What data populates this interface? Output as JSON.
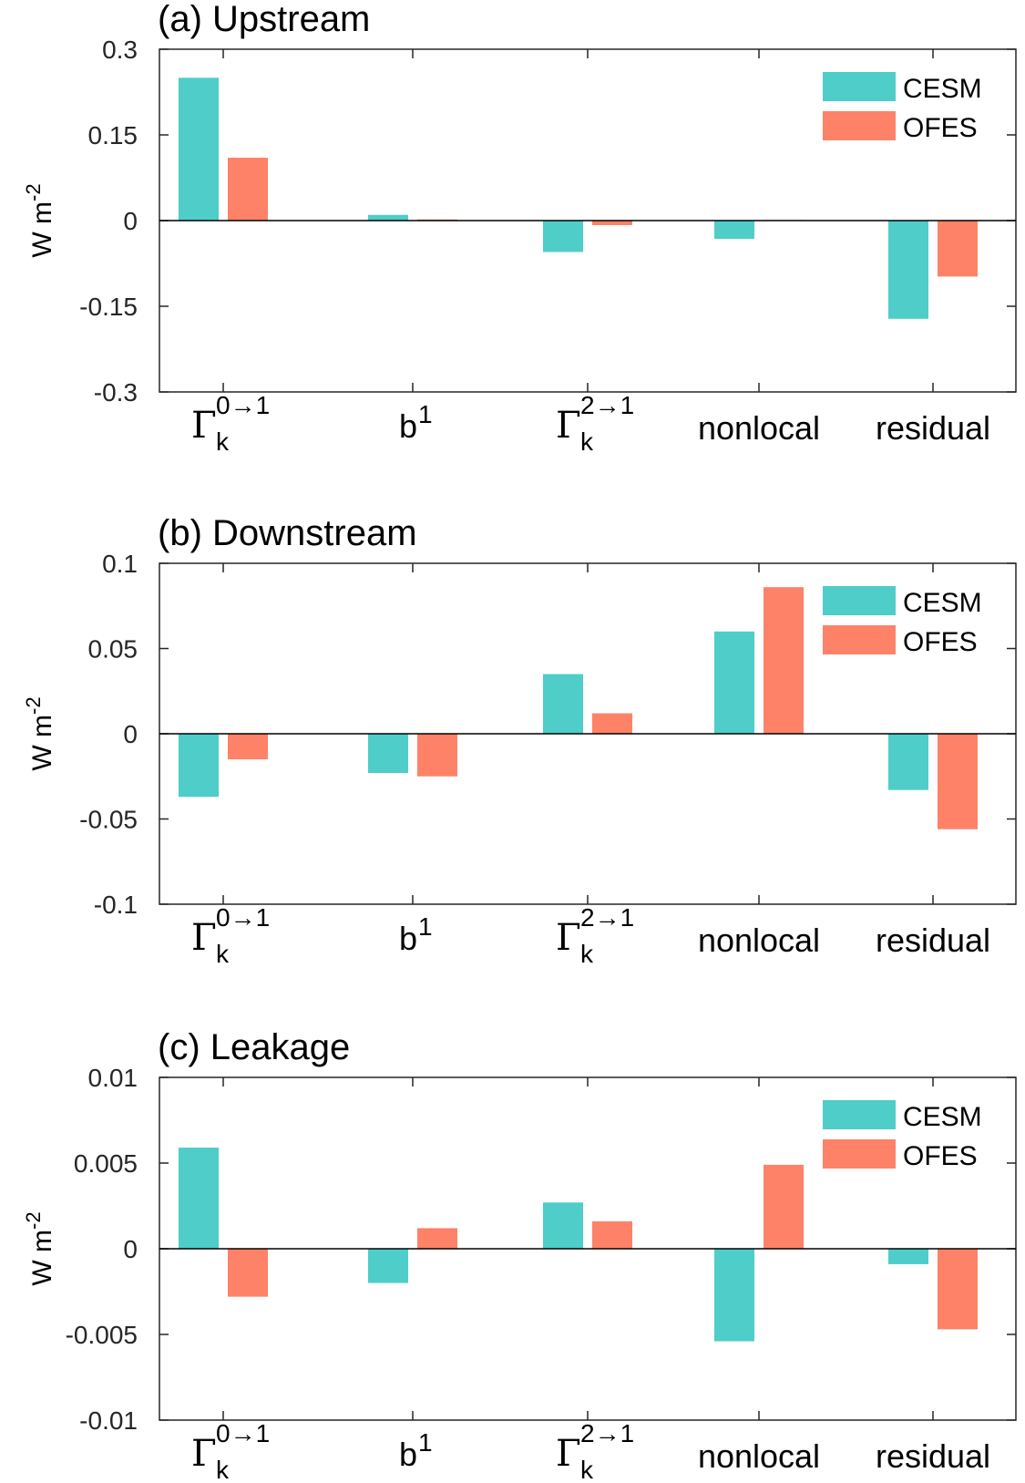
{
  "colors": {
    "CESM": "#4ecdc9",
    "OFES": "#fe8268",
    "axis": "#262626"
  },
  "categories": [
    "Γk0→1",
    "b1",
    "Γk2→1",
    "nonlocal",
    "residual"
  ],
  "chart_data": [
    {
      "type": "bar",
      "title": "(a) Upstream",
      "ylabel": "W m-2",
      "ylim": [
        -0.3,
        0.3
      ],
      "yticks": [
        "-0.3",
        "-0.15",
        "0",
        "0.15",
        "0.3"
      ],
      "ytick_values": [
        -0.3,
        -0.15,
        0,
        0.15,
        0.3
      ],
      "categories": [
        "Γk0→1",
        "b1",
        "Γk2→1",
        "nonlocal",
        "residual"
      ],
      "legend": "top-right",
      "series": [
        {
          "name": "CESM",
          "values": [
            0.25,
            0.01,
            -0.055,
            -0.032,
            -0.172
          ]
        },
        {
          "name": "OFES",
          "values": [
            0.11,
            0.002,
            -0.008,
            0.001,
            -0.098
          ]
        }
      ]
    },
    {
      "type": "bar",
      "title": "(b) Downstream",
      "ylabel": "W m-2",
      "ylim": [
        -0.1,
        0.1
      ],
      "yticks": [
        "-0.1",
        "-0.05",
        "0",
        "0.05",
        "0.1"
      ],
      "ytick_values": [
        -0.1,
        -0.05,
        0,
        0.05,
        0.1
      ],
      "categories": [
        "Γk0→1",
        "b1",
        "Γk2→1",
        "nonlocal",
        "residual"
      ],
      "legend": "top-right",
      "series": [
        {
          "name": "CESM",
          "values": [
            -0.037,
            -0.023,
            0.035,
            0.06,
            -0.033
          ]
        },
        {
          "name": "OFES",
          "values": [
            -0.015,
            -0.025,
            0.012,
            0.086,
            -0.056
          ]
        }
      ]
    },
    {
      "type": "bar",
      "title": "(c) Leakage",
      "ylabel": "W m-2",
      "ylim": [
        -0.01,
        0.01
      ],
      "yticks": [
        "-0.01",
        "-0.005",
        "0",
        "0.005",
        "0.01"
      ],
      "ytick_values": [
        -0.01,
        -0.005,
        0,
        0.005,
        0.01
      ],
      "categories": [
        "Γk0→1",
        "b1",
        "Γk2→1",
        "nonlocal",
        "residual"
      ],
      "legend": "top-right",
      "series": [
        {
          "name": "CESM",
          "values": [
            0.0059,
            -0.002,
            0.0027,
            -0.0054,
            -0.0009
          ]
        },
        {
          "name": "OFES",
          "values": [
            -0.0028,
            0.0012,
            0.0016,
            0.0049,
            -0.0047
          ]
        }
      ]
    }
  ]
}
